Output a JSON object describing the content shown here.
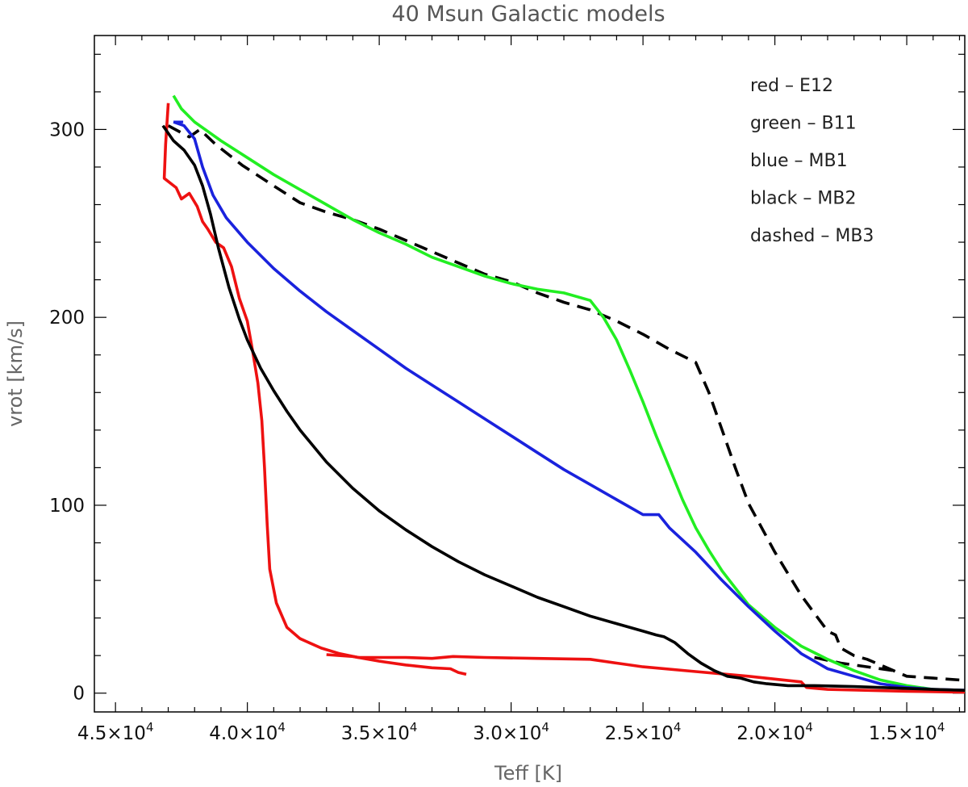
{
  "chart_data": {
    "type": "line",
    "title": "40 Msun Galactic models",
    "xlabel": "Teff [K]",
    "ylabel": "vrot [km/s]",
    "xlim": [
      45800,
      12800
    ],
    "ylim": [
      -10,
      350
    ],
    "x_reversed": true,
    "grid": false,
    "x_ticks": [
      {
        "value": 45000,
        "mant": "4.5",
        "exp": "4"
      },
      {
        "value": 40000,
        "mant": "4.0",
        "exp": "4"
      },
      {
        "value": 35000,
        "mant": "3.5",
        "exp": "4"
      },
      {
        "value": 30000,
        "mant": "3.0",
        "exp": "4"
      },
      {
        "value": 25000,
        "mant": "2.5",
        "exp": "4"
      },
      {
        "value": 20000,
        "mant": "2.0",
        "exp": "4"
      },
      {
        "value": 15000,
        "mant": "1.5",
        "exp": "4"
      }
    ],
    "y_ticks": [
      0,
      100,
      200,
      300
    ],
    "legend": {
      "placement": "top-right",
      "entries": [
        "red – E12",
        "green – B11",
        "blue – MB1",
        "black – MB2",
        "dashed – MB3"
      ]
    },
    "series": [
      {
        "key": "E12",
        "color": "#ee1111",
        "dash": "solid",
        "points": [
          [
            43000,
            314
          ],
          [
            43100,
            292
          ],
          [
            43150,
            274
          ],
          [
            42700,
            269
          ],
          [
            42500,
            263
          ],
          [
            42200,
            266
          ],
          [
            41900,
            259
          ],
          [
            41700,
            251
          ],
          [
            41500,
            247
          ],
          [
            41200,
            240
          ],
          [
            40900,
            237
          ],
          [
            40600,
            227
          ],
          [
            40300,
            210
          ],
          [
            40000,
            198
          ],
          [
            39800,
            182
          ],
          [
            39600,
            165
          ],
          [
            39450,
            145
          ],
          [
            39350,
            120
          ],
          [
            39250,
            90
          ],
          [
            39150,
            66
          ],
          [
            38900,
            48
          ],
          [
            38500,
            35
          ],
          [
            38000,
            29
          ],
          [
            37200,
            24
          ],
          [
            36500,
            21
          ],
          [
            35800,
            19
          ],
          [
            35000,
            19
          ],
          [
            34000,
            19
          ],
          [
            33000,
            18.5
          ],
          [
            32200,
            19.5
          ],
          [
            31000,
            19
          ],
          [
            29000,
            18.5
          ],
          [
            27000,
            18
          ],
          [
            26000,
            16
          ],
          [
            25000,
            14
          ],
          [
            23000,
            11.5
          ],
          [
            21000,
            9
          ],
          [
            19000,
            6
          ],
          [
            18800,
            3
          ],
          [
            18000,
            2
          ],
          [
            15000,
            1
          ],
          [
            12800,
            0.5
          ]
        ],
        "hook": [
          [
            37000,
            20.5
          ],
          [
            36000,
            19.5
          ],
          [
            35000,
            17
          ],
          [
            34000,
            15
          ],
          [
            33000,
            13.5
          ],
          [
            32300,
            13
          ],
          [
            32000,
            11
          ],
          [
            31700,
            10
          ]
        ]
      },
      {
        "key": "B11",
        "color": "#22ee22",
        "dash": "solid",
        "points": [
          [
            42800,
            318
          ],
          [
            42500,
            311
          ],
          [
            42000,
            304
          ],
          [
            41000,
            294
          ],
          [
            40000,
            285
          ],
          [
            39000,
            276
          ],
          [
            38000,
            268
          ],
          [
            37000,
            260
          ],
          [
            36000,
            252
          ],
          [
            35000,
            245
          ],
          [
            34000,
            239
          ],
          [
            33000,
            232
          ],
          [
            32000,
            227
          ],
          [
            31000,
            222
          ],
          [
            30000,
            218
          ],
          [
            29000,
            215
          ],
          [
            28000,
            213
          ],
          [
            27000,
            209
          ],
          [
            26500,
            200
          ],
          [
            26000,
            188
          ],
          [
            25500,
            172
          ],
          [
            25000,
            155
          ],
          [
            24500,
            137
          ],
          [
            24000,
            120
          ],
          [
            23500,
            103
          ],
          [
            23000,
            88
          ],
          [
            22500,
            76
          ],
          [
            22000,
            65
          ],
          [
            21500,
            56
          ],
          [
            21000,
            47
          ],
          [
            20000,
            35
          ],
          [
            19000,
            25
          ],
          [
            18000,
            18
          ],
          [
            17000,
            12
          ],
          [
            16000,
            7
          ],
          [
            15000,
            4
          ],
          [
            14000,
            2
          ],
          [
            13000,
            1
          ],
          [
            12800,
            0.5
          ]
        ]
      },
      {
        "key": "MB1",
        "color": "#1a22dd",
        "dash": "solid",
        "points": [
          [
            42800,
            304
          ],
          [
            42400,
            302
          ],
          [
            42000,
            295
          ],
          [
            41700,
            280
          ],
          [
            41300,
            265
          ],
          [
            40800,
            253
          ],
          [
            40000,
            240
          ],
          [
            39000,
            226
          ],
          [
            38000,
            214
          ],
          [
            37000,
            203
          ],
          [
            36000,
            193
          ],
          [
            35000,
            183
          ],
          [
            34000,
            173
          ],
          [
            33000,
            164
          ],
          [
            32000,
            155
          ],
          [
            31000,
            146
          ],
          [
            30000,
            137
          ],
          [
            29000,
            128
          ],
          [
            28000,
            119
          ],
          [
            27000,
            111
          ],
          [
            26000,
            103
          ],
          [
            25000,
            95
          ],
          [
            24400,
            95
          ],
          [
            24000,
            88
          ],
          [
            23000,
            75
          ],
          [
            22000,
            60
          ],
          [
            21000,
            46
          ],
          [
            20000,
            33
          ],
          [
            19000,
            21
          ],
          [
            18000,
            13
          ],
          [
            17000,
            9
          ],
          [
            16000,
            5
          ],
          [
            15000,
            3
          ],
          [
            14000,
            2
          ],
          [
            12800,
            1.5
          ]
        ]
      },
      {
        "key": "MB2",
        "color": "#000000",
        "dash": "solid",
        "points": [
          [
            43200,
            302
          ],
          [
            42800,
            294
          ],
          [
            42400,
            289
          ],
          [
            42000,
            281
          ],
          [
            41700,
            270
          ],
          [
            41400,
            255
          ],
          [
            41100,
            237
          ],
          [
            40700,
            216
          ],
          [
            40300,
            199
          ],
          [
            40000,
            188
          ],
          [
            39500,
            173
          ],
          [
            39000,
            161
          ],
          [
            38500,
            150
          ],
          [
            38000,
            140
          ],
          [
            37000,
            123
          ],
          [
            36000,
            109
          ],
          [
            35000,
            97
          ],
          [
            34000,
            87
          ],
          [
            33000,
            78
          ],
          [
            32000,
            70
          ],
          [
            31000,
            63
          ],
          [
            30000,
            57
          ],
          [
            29000,
            51
          ],
          [
            28000,
            46
          ],
          [
            27000,
            41
          ],
          [
            26000,
            37
          ],
          [
            25000,
            33
          ],
          [
            24500,
            31
          ],
          [
            24200,
            30
          ],
          [
            23800,
            27
          ],
          [
            23300,
            21
          ],
          [
            22800,
            16
          ],
          [
            22300,
            12
          ],
          [
            21800,
            9
          ],
          [
            21300,
            8
          ],
          [
            20800,
            6
          ],
          [
            20300,
            5
          ],
          [
            19500,
            4
          ],
          [
            18500,
            4
          ],
          [
            17000,
            3.5
          ],
          [
            16000,
            3
          ],
          [
            15000,
            2.5
          ],
          [
            14000,
            2
          ],
          [
            12800,
            1.5
          ]
        ]
      },
      {
        "key": "MB3",
        "color": "#000000",
        "dash": "dashed",
        "points": [
          [
            43000,
            302
          ],
          [
            42200,
            296
          ],
          [
            41800,
            300
          ],
          [
            41200,
            292
          ],
          [
            40200,
            281
          ],
          [
            39000,
            270
          ],
          [
            38000,
            261
          ],
          [
            37000,
            256
          ],
          [
            36000,
            252
          ],
          [
            35000,
            247
          ],
          [
            34000,
            241
          ],
          [
            33000,
            235
          ],
          [
            32000,
            229
          ],
          [
            31000,
            223
          ],
          [
            30000,
            219
          ],
          [
            29000,
            213
          ],
          [
            28000,
            208
          ],
          [
            27000,
            204
          ],
          [
            26000,
            198
          ],
          [
            25000,
            191
          ],
          [
            24000,
            183
          ],
          [
            23000,
            176
          ],
          [
            22500,
            160
          ],
          [
            22000,
            140
          ],
          [
            21500,
            120
          ],
          [
            21000,
            101
          ],
          [
            20000,
            75
          ],
          [
            19000,
            52
          ],
          [
            18000,
            33
          ],
          [
            17700,
            31
          ],
          [
            17500,
            24
          ],
          [
            17000,
            20
          ],
          [
            16500,
            18
          ],
          [
            16000,
            15
          ],
          [
            15500,
            12
          ],
          [
            15000,
            9
          ],
          [
            14000,
            8
          ],
          [
            13000,
            7
          ],
          [
            12800,
            7
          ]
        ],
        "tail": [
          [
            18500,
            19
          ],
          [
            17500,
            16
          ],
          [
            16500,
            14
          ],
          [
            15500,
            12
          ]
        ]
      }
    ]
  }
}
